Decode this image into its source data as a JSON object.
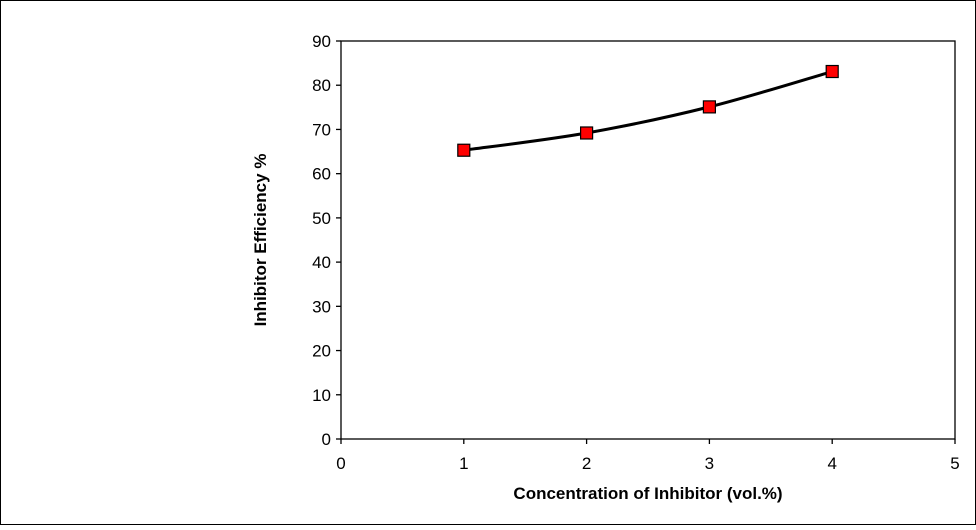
{
  "chart_data": {
    "type": "line",
    "title": "",
    "xlabel": "Concentration of Inhibitor (vol.%)",
    "ylabel": "Inhibitor Efficiency %",
    "xlim": [
      0,
      5
    ],
    "ylim": [
      0,
      90
    ],
    "x_ticks": [
      0,
      1,
      2,
      3,
      4,
      5
    ],
    "y_ticks": [
      0,
      10,
      20,
      30,
      40,
      50,
      60,
      70,
      80,
      90
    ],
    "grid": false,
    "legend": "none",
    "series": [
      {
        "x": [
          1,
          2,
          3,
          4
        ],
        "y": [
          65.3,
          69.2,
          75.1,
          83.1
        ],
        "line_color": "#000000",
        "marker": "square",
        "marker_color": "#ff0000",
        "smooth": true
      }
    ]
  }
}
